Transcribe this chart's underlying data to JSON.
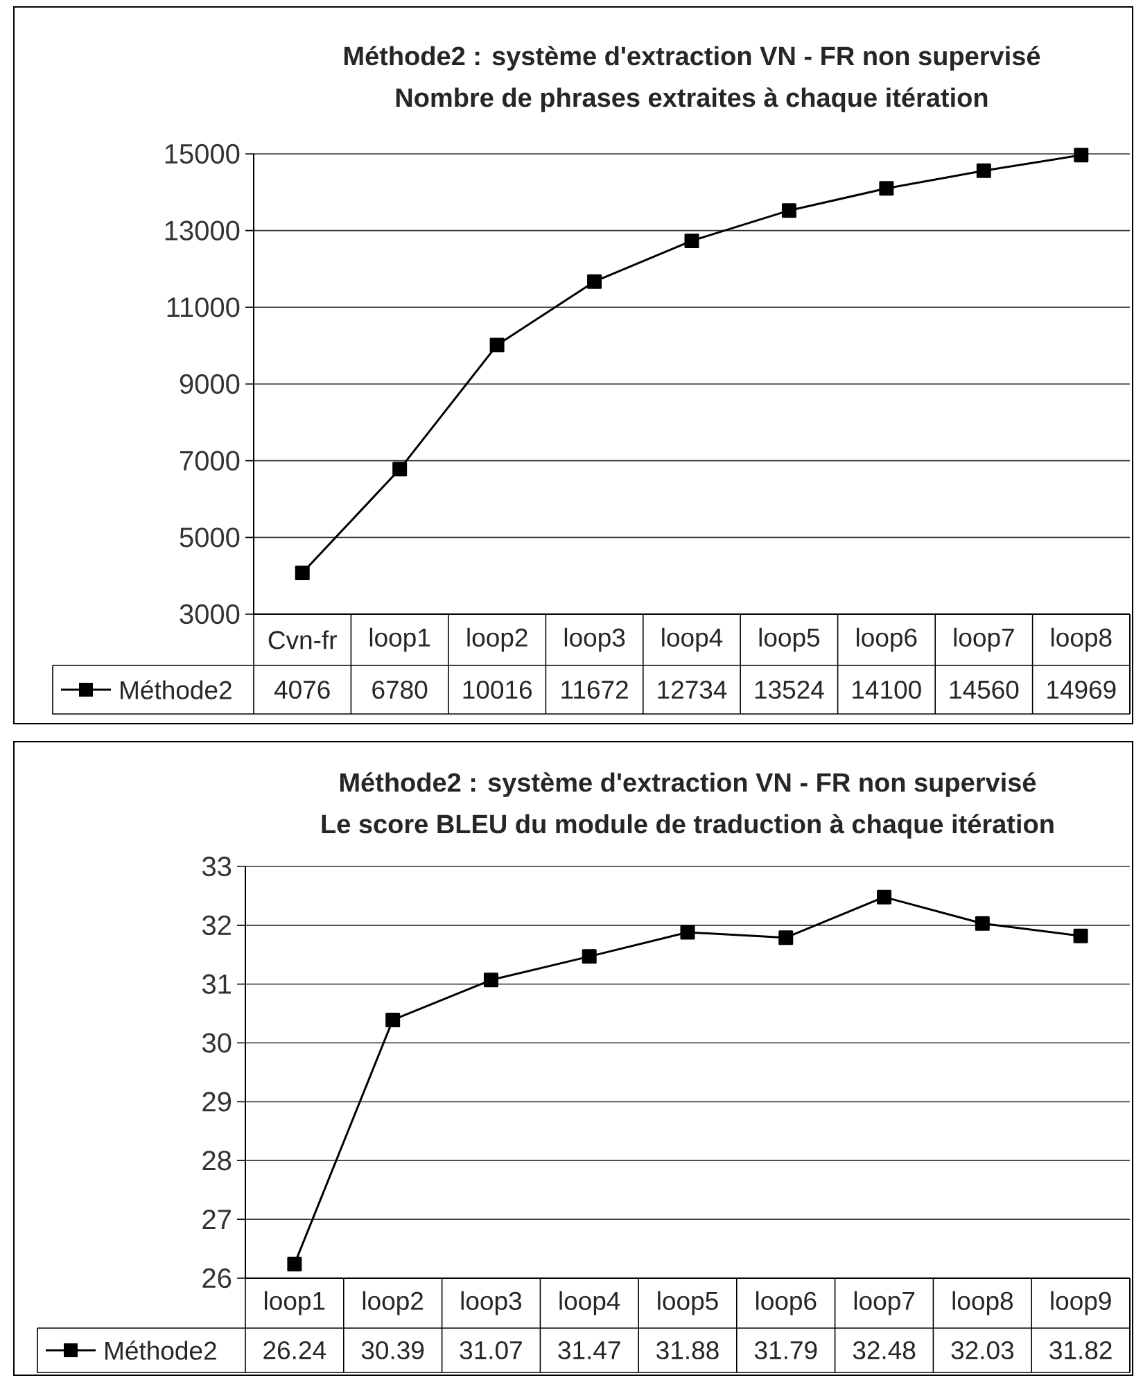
{
  "chart_data": [
    {
      "type": "line",
      "title": "Méthode2 : système d'extraction VN - FR non supervisé",
      "subtitle": "Nombre de phrases extraites à chaque itération",
      "categories": [
        "Cvn-fr",
        "loop1",
        "loop2",
        "loop3",
        "loop4",
        "loop5",
        "loop6",
        "loop7",
        "loop8"
      ],
      "series": [
        {
          "name": "Méthode2",
          "color": "#000000",
          "values": [
            4076,
            6780,
            10016,
            11672,
            12734,
            13524,
            14100,
            14560,
            14969
          ]
        }
      ],
      "ylim": [
        3000,
        15000
      ],
      "yticks": [
        3000,
        5000,
        7000,
        9000,
        11000,
        13000,
        15000
      ],
      "grid": "y",
      "legend": "bottom",
      "marker": "square",
      "data_labels": true
    },
    {
      "type": "line",
      "title": "Méthode2 : système d'extraction VN - FR non supervisé",
      "subtitle": "Le score BLEU du module de traduction à chaque itération",
      "categories": [
        "loop1",
        "loop2",
        "loop3",
        "loop4",
        "loop5",
        "loop6",
        "loop7",
        "loop8",
        "loop9"
      ],
      "series": [
        {
          "name": "Méthode2",
          "color": "#000000",
          "values": [
            26.24,
            30.39,
            31.07,
            31.47,
            31.88,
            31.79,
            32.48,
            32.03,
            31.82
          ]
        }
      ],
      "ylim": [
        26,
        33
      ],
      "yticks": [
        26,
        27,
        28,
        29,
        30,
        31,
        32,
        33
      ],
      "grid": "y",
      "legend": "bottom",
      "marker": "square",
      "data_labels": true
    }
  ]
}
